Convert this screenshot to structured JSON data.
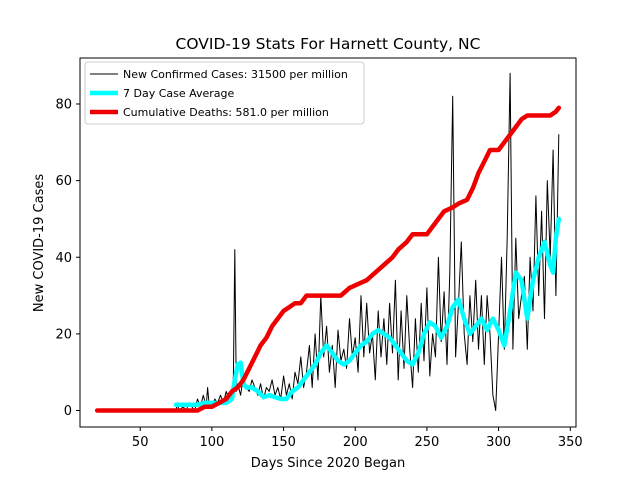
{
  "chart_data": {
    "type": "line",
    "title": "COVID-19 Stats For Harnett County, NC",
    "xlabel": "Days Since 2020 Began",
    "ylabel": "New COVID-19 Cases",
    "xlim": [
      8,
      354
    ],
    "ylim": [
      -4.3,
      92
    ],
    "xticks": [
      50,
      100,
      150,
      200,
      250,
      300,
      350
    ],
    "yticks": [
      0,
      20,
      40,
      60,
      80
    ],
    "grid": false,
    "legend_position": "top-left",
    "series": [
      {
        "name": "New Confirmed Cases: 31500 per million",
        "color": "#000000",
        "line_width": 1,
        "points": [
          [
            75,
            0
          ],
          [
            76,
            2
          ],
          [
            77,
            0
          ],
          [
            80,
            1
          ],
          [
            82,
            0
          ],
          [
            84,
            2
          ],
          [
            86,
            1
          ],
          [
            88,
            0
          ],
          [
            90,
            3
          ],
          [
            92,
            1
          ],
          [
            94,
            4
          ],
          [
            96,
            1
          ],
          [
            97,
            6
          ],
          [
            98,
            2
          ],
          [
            100,
            1
          ],
          [
            102,
            3
          ],
          [
            104,
            2
          ],
          [
            106,
            4
          ],
          [
            108,
            2
          ],
          [
            110,
            5
          ],
          [
            112,
            3
          ],
          [
            114,
            4
          ],
          [
            115,
            9
          ],
          [
            116,
            42
          ],
          [
            117,
            5
          ],
          [
            118,
            7
          ],
          [
            120,
            4
          ],
          [
            122,
            9
          ],
          [
            124,
            6
          ],
          [
            126,
            5
          ],
          [
            128,
            8
          ],
          [
            130,
            6
          ],
          [
            132,
            4
          ],
          [
            134,
            7
          ],
          [
            136,
            3
          ],
          [
            138,
            6
          ],
          [
            140,
            5
          ],
          [
            142,
            8
          ],
          [
            144,
            4
          ],
          [
            146,
            6
          ],
          [
            148,
            3
          ],
          [
            150,
            9
          ],
          [
            152,
            4
          ],
          [
            154,
            7
          ],
          [
            156,
            3
          ],
          [
            158,
            10
          ],
          [
            160,
            7
          ],
          [
            162,
            14
          ],
          [
            164,
            6
          ],
          [
            166,
            10
          ],
          [
            168,
            17
          ],
          [
            170,
            6
          ],
          [
            172,
            20
          ],
          [
            174,
            8
          ],
          [
            176,
            30
          ],
          [
            178,
            14
          ],
          [
            180,
            22
          ],
          [
            182,
            10
          ],
          [
            184,
            17
          ],
          [
            186,
            6
          ],
          [
            188,
            21
          ],
          [
            190,
            13
          ],
          [
            192,
            16
          ],
          [
            194,
            11
          ],
          [
            196,
            24
          ],
          [
            198,
            14
          ],
          [
            200,
            19
          ],
          [
            202,
            10
          ],
          [
            204,
            30
          ],
          [
            206,
            14
          ],
          [
            208,
            28
          ],
          [
            210,
            15
          ],
          [
            212,
            20
          ],
          [
            214,
            8
          ],
          [
            216,
            26
          ],
          [
            218,
            14
          ],
          [
            220,
            24
          ],
          [
            222,
            12
          ],
          [
            224,
            28
          ],
          [
            226,
            15
          ],
          [
            228,
            34
          ],
          [
            230,
            8
          ],
          [
            232,
            26
          ],
          [
            234,
            11
          ],
          [
            236,
            30
          ],
          [
            238,
            16
          ],
          [
            240,
            6
          ],
          [
            242,
            24
          ],
          [
            244,
            10
          ],
          [
            246,
            28
          ],
          [
            248,
            13
          ],
          [
            250,
            32
          ],
          [
            252,
            9
          ],
          [
            254,
            20
          ],
          [
            256,
            14
          ],
          [
            258,
            40
          ],
          [
            260,
            18
          ],
          [
            262,
            31
          ],
          [
            264,
            12
          ],
          [
            266,
            36
          ],
          [
            268,
            82
          ],
          [
            270,
            14
          ],
          [
            272,
            28
          ],
          [
            274,
            44
          ],
          [
            276,
            20
          ],
          [
            278,
            12
          ],
          [
            280,
            30
          ],
          [
            282,
            18
          ],
          [
            284,
            34
          ],
          [
            286,
            16
          ],
          [
            288,
            30
          ],
          [
            290,
            12
          ],
          [
            292,
            30
          ],
          [
            294,
            20
          ],
          [
            296,
            4
          ],
          [
            298,
            0
          ],
          [
            300,
            20
          ],
          [
            302,
            40
          ],
          [
            304,
            16
          ],
          [
            306,
            45
          ],
          [
            308,
            88
          ],
          [
            310,
            16
          ],
          [
            312,
            45
          ],
          [
            314,
            24
          ],
          [
            316,
            30
          ],
          [
            318,
            35
          ],
          [
            320,
            16
          ],
          [
            322,
            40
          ],
          [
            324,
            26
          ],
          [
            326,
            56
          ],
          [
            328,
            30
          ],
          [
            330,
            52
          ],
          [
            332,
            24
          ],
          [
            334,
            60
          ],
          [
            336,
            40
          ],
          [
            338,
            68
          ],
          [
            340,
            30
          ],
          [
            342,
            72
          ]
        ]
      },
      {
        "name": "7 Day Case Average",
        "color": "#00ffff",
        "line_width": 4.5,
        "points": [
          [
            75,
            1.5
          ],
          [
            80,
            1.5
          ],
          [
            85,
            1.5
          ],
          [
            90,
            1.5
          ],
          [
            95,
            2
          ],
          [
            100,
            2
          ],
          [
            105,
            2
          ],
          [
            110,
            2
          ],
          [
            114,
            3
          ],
          [
            116,
            8
          ],
          [
            118,
            12
          ],
          [
            120,
            12.5
          ],
          [
            122,
            7
          ],
          [
            124,
            6
          ],
          [
            128,
            6
          ],
          [
            132,
            5
          ],
          [
            136,
            3.5
          ],
          [
            140,
            4
          ],
          [
            144,
            3.5
          ],
          [
            148,
            3
          ],
          [
            152,
            3
          ],
          [
            156,
            5
          ],
          [
            160,
            6
          ],
          [
            164,
            8
          ],
          [
            168,
            10
          ],
          [
            172,
            12
          ],
          [
            176,
            15
          ],
          [
            180,
            17
          ],
          [
            184,
            15
          ],
          [
            188,
            13
          ],
          [
            192,
            12
          ],
          [
            196,
            13
          ],
          [
            200,
            15
          ],
          [
            204,
            17
          ],
          [
            208,
            18
          ],
          [
            212,
            20
          ],
          [
            216,
            21
          ],
          [
            220,
            20
          ],
          [
            224,
            19
          ],
          [
            228,
            17
          ],
          [
            232,
            15
          ],
          [
            236,
            13
          ],
          [
            240,
            12
          ],
          [
            244,
            15
          ],
          [
            248,
            20
          ],
          [
            252,
            23
          ],
          [
            256,
            22
          ],
          [
            260,
            19
          ],
          [
            264,
            22
          ],
          [
            268,
            27
          ],
          [
            272,
            29
          ],
          [
            276,
            24
          ],
          [
            280,
            20
          ],
          [
            284,
            22
          ],
          [
            288,
            24
          ],
          [
            292,
            21
          ],
          [
            296,
            24
          ],
          [
            300,
            21
          ],
          [
            304,
            17
          ],
          [
            308,
            26
          ],
          [
            312,
            36
          ],
          [
            316,
            34
          ],
          [
            320,
            24
          ],
          [
            324,
            34
          ],
          [
            328,
            40
          ],
          [
            332,
            44
          ],
          [
            336,
            38
          ],
          [
            338,
            36
          ],
          [
            340,
            45
          ],
          [
            342,
            50
          ]
        ]
      },
      {
        "name": "Cumulative Deaths: 581.0 per million",
        "color": "#ee0000",
        "line_width": 4.5,
        "points": [
          [
            20,
            0
          ],
          [
            85,
            0
          ],
          [
            90,
            0
          ],
          [
            95,
            1
          ],
          [
            100,
            1
          ],
          [
            105,
            2
          ],
          [
            110,
            3
          ],
          [
            114,
            5
          ],
          [
            118,
            6
          ],
          [
            122,
            8
          ],
          [
            126,
            11
          ],
          [
            130,
            14
          ],
          [
            134,
            17
          ],
          [
            138,
            19
          ],
          [
            142,
            22
          ],
          [
            146,
            24
          ],
          [
            150,
            26
          ],
          [
            154,
            27
          ],
          [
            158,
            28
          ],
          [
            162,
            28
          ],
          [
            166,
            30
          ],
          [
            170,
            30
          ],
          [
            180,
            30
          ],
          [
            190,
            30
          ],
          [
            196,
            32
          ],
          [
            202,
            33
          ],
          [
            208,
            34
          ],
          [
            214,
            36
          ],
          [
            220,
            38
          ],
          [
            226,
            40
          ],
          [
            230,
            42
          ],
          [
            236,
            44
          ],
          [
            240,
            46
          ],
          [
            250,
            46
          ],
          [
            254,
            48
          ],
          [
            258,
            50
          ],
          [
            262,
            52
          ],
          [
            268,
            53
          ],
          [
            272,
            54
          ],
          [
            278,
            55
          ],
          [
            282,
            58
          ],
          [
            286,
            62
          ],
          [
            290,
            65
          ],
          [
            294,
            68
          ],
          [
            300,
            68
          ],
          [
            304,
            70
          ],
          [
            308,
            72
          ],
          [
            312,
            74
          ],
          [
            316,
            76
          ],
          [
            320,
            77
          ],
          [
            326,
            77
          ],
          [
            330,
            77
          ],
          [
            336,
            77
          ],
          [
            340,
            78
          ],
          [
            342,
            79
          ]
        ]
      }
    ]
  }
}
